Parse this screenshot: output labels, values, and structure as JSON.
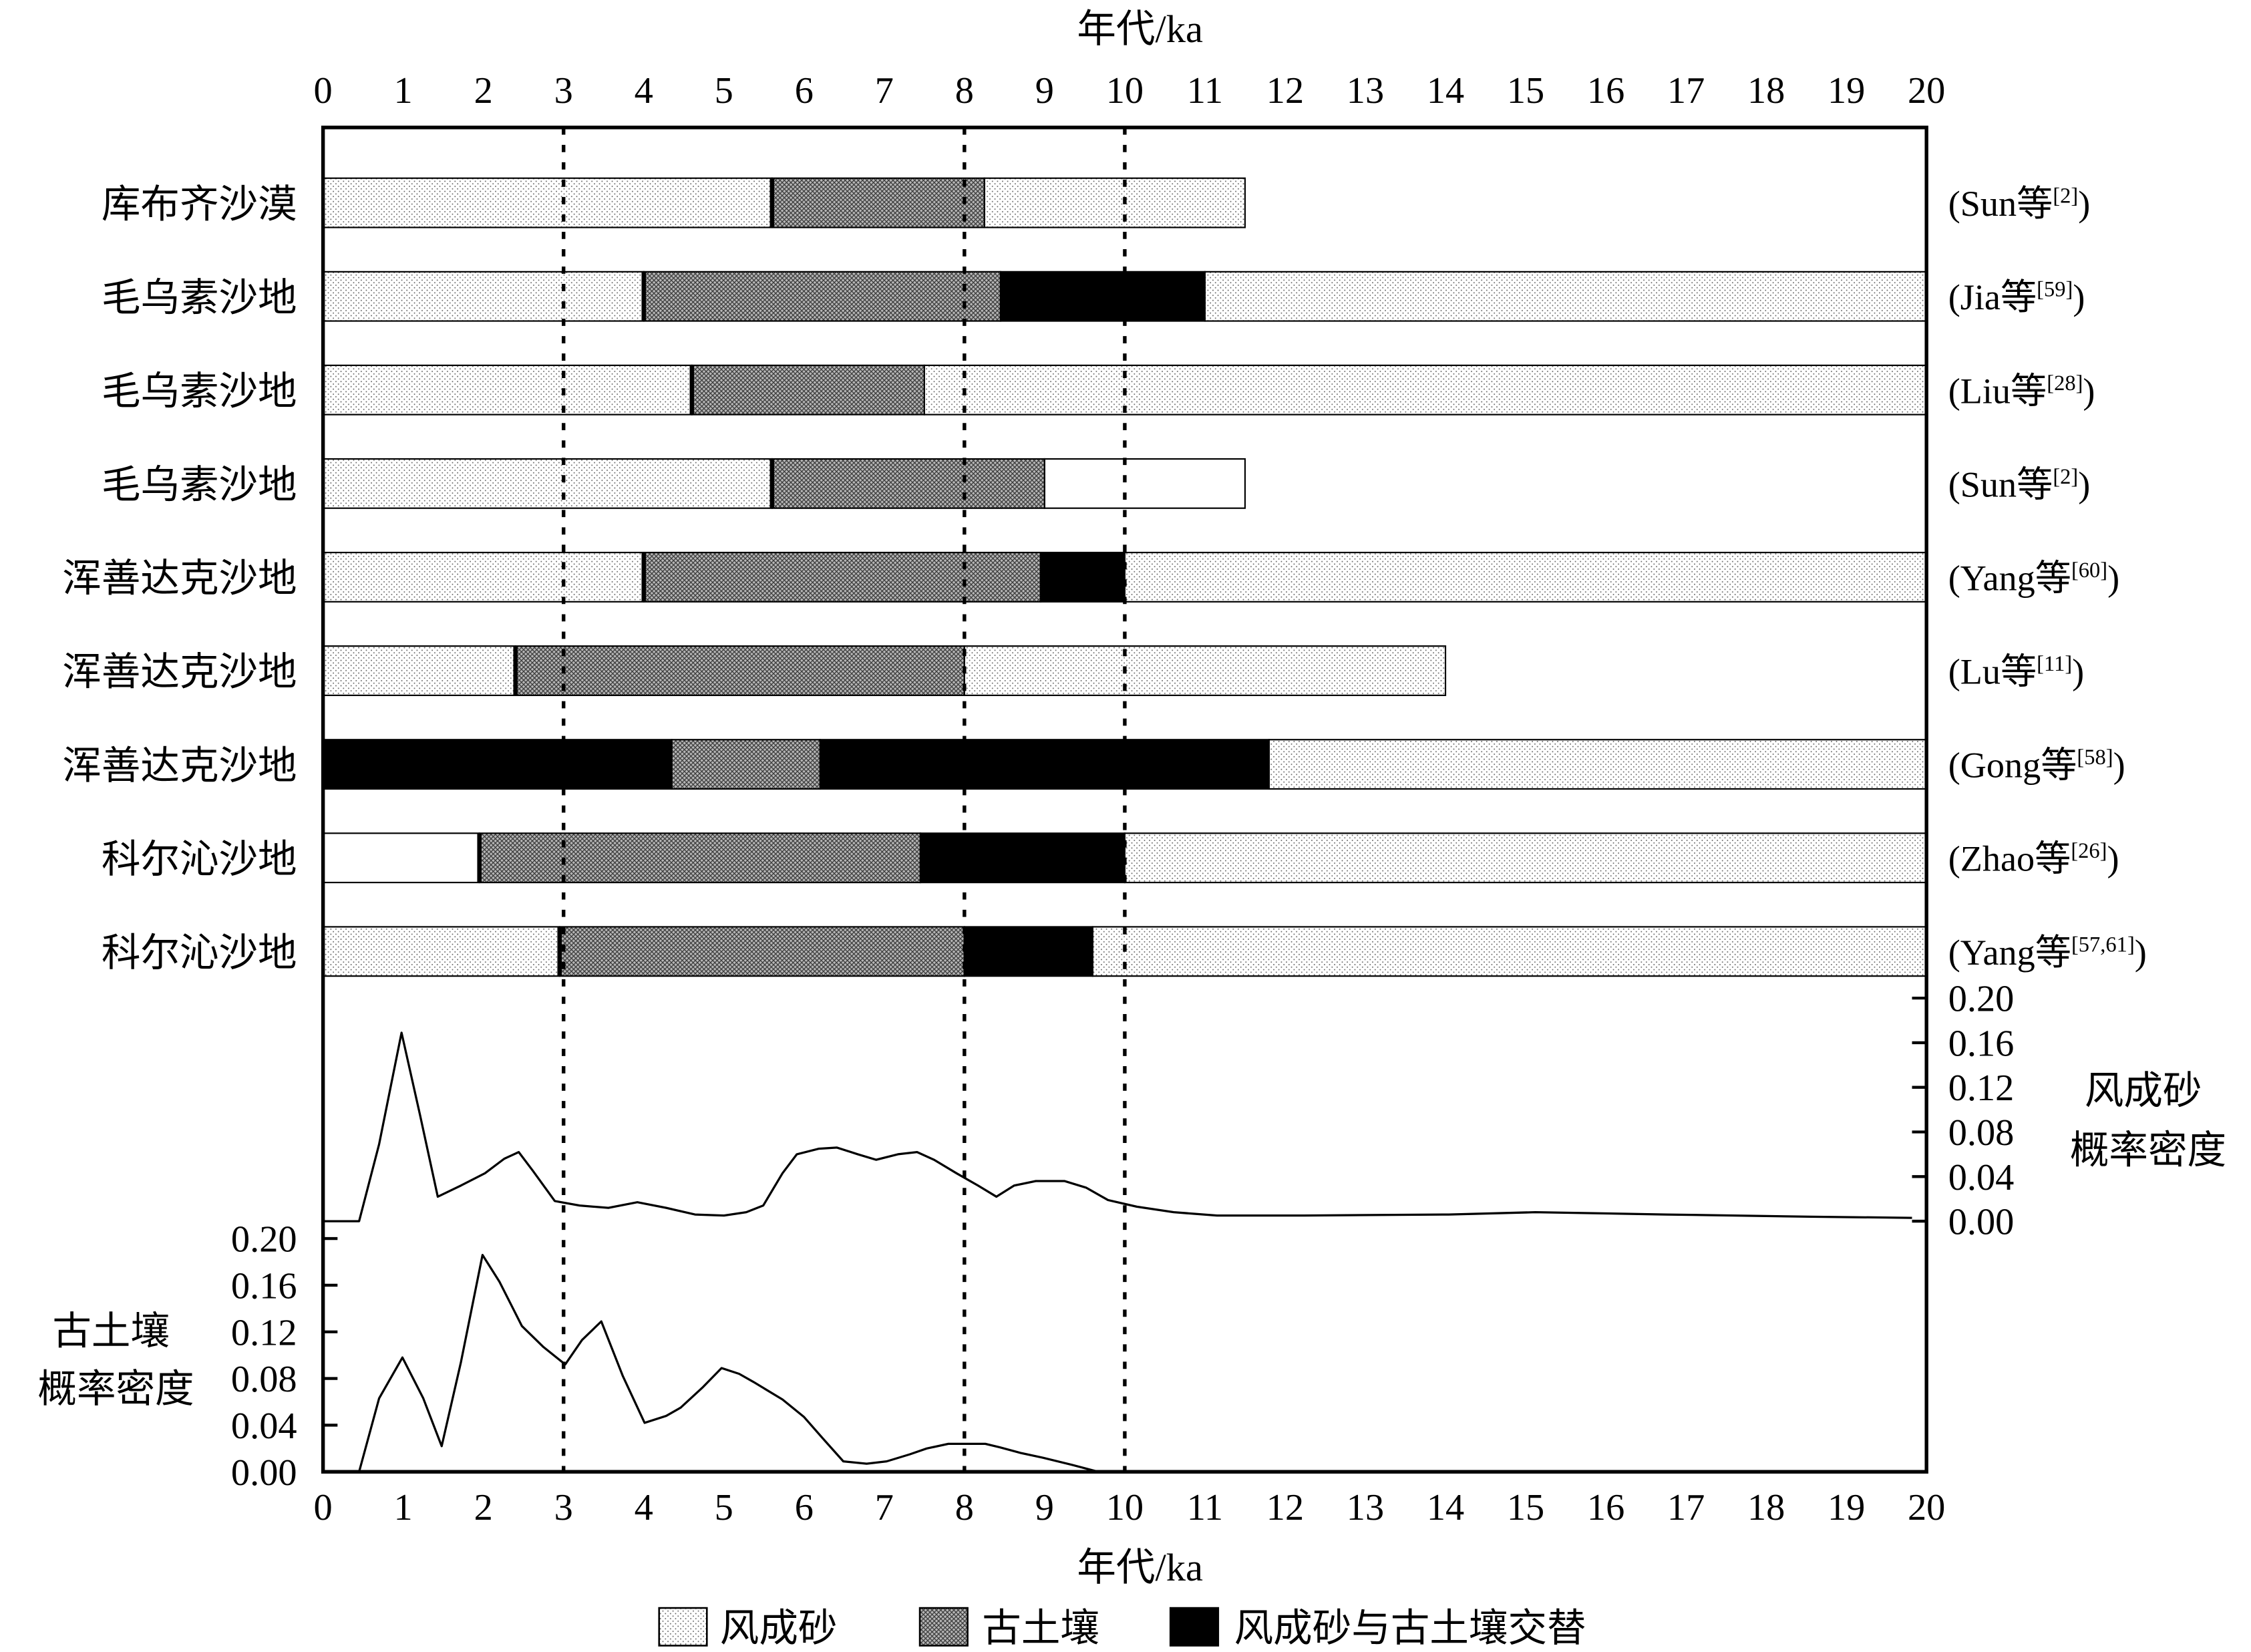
{
  "chart_data": {
    "type": "bar",
    "top_xlabel": "年代/ka",
    "xlabel": "年代/ka",
    "xlim": [
      0,
      20
    ],
    "xticks": [
      0,
      1,
      2,
      3,
      4,
      5,
      6,
      7,
      8,
      9,
      10,
      11,
      12,
      13,
      14,
      15,
      16,
      17,
      18,
      19,
      20
    ],
    "reference_lines": [
      3,
      8,
      10
    ],
    "legend_placement": "bottom",
    "legend": [
      {
        "label": "风成砂"
      },
      {
        "label": "古土壤"
      },
      {
        "label": "风成砂与古土壤交替",
        "color": "#000000"
      }
    ],
    "rows": [
      {
        "site": "库布齐沙漠",
        "citation": {
          "open": "(Sun等",
          "ref": "[2]",
          "close": ")"
        },
        "segments": [
          {
            "start": 0,
            "end": 5.6,
            "type": 0
          },
          {
            "start": 5.6,
            "end": 8.25,
            "type": 1
          },
          {
            "start": 8.25,
            "end": 11.5,
            "type": 0
          }
        ]
      },
      {
        "site": "毛乌素沙地",
        "citation": {
          "open": "(Jia等",
          "ref": "[59]",
          "close": ")"
        },
        "segments": [
          {
            "start": 0,
            "end": 4.0,
            "type": 0
          },
          {
            "start": 4.0,
            "end": 8.45,
            "type": 1
          },
          {
            "start": 8.45,
            "end": 11.0,
            "type": 2
          },
          {
            "start": 11.0,
            "end": 20,
            "type": 0
          }
        ]
      },
      {
        "site": "毛乌素沙地",
        "citation": {
          "open": "(Liu等",
          "ref": "[28]",
          "close": ")"
        },
        "segments": [
          {
            "start": 0,
            "end": 4.6,
            "type": 0
          },
          {
            "start": 4.6,
            "end": 7.5,
            "type": 1
          },
          {
            "start": 7.5,
            "end": 20,
            "type": 0
          }
        ]
      },
      {
        "site": "毛乌素沙地",
        "citation": {
          "open": "(Sun等",
          "ref": "[2]",
          "close": ")"
        },
        "segments": [
          {
            "start": 0,
            "end": 5.6,
            "type": 0
          },
          {
            "start": 5.6,
            "end": 9.0,
            "type": 1
          },
          {
            "start": 9.0,
            "end": 11.5,
            "type": 0,
            "fill": "#ffffff"
          }
        ]
      },
      {
        "site": "浑善达克沙地",
        "citation": {
          "open": "(Yang等",
          "ref": "[60]",
          "close": ")"
        },
        "segments": [
          {
            "start": 0,
            "end": 4.0,
            "type": 0
          },
          {
            "start": 4.0,
            "end": 8.95,
            "type": 1
          },
          {
            "start": 8.95,
            "end": 10.0,
            "type": 2
          },
          {
            "start": 10.0,
            "end": 20,
            "type": 0
          }
        ]
      },
      {
        "site": "浑善达克沙地",
        "citation": {
          "open": "(Lu等",
          "ref": "[11]",
          "close": ")"
        },
        "segments": [
          {
            "start": 0,
            "end": 2.4,
            "type": 0
          },
          {
            "start": 2.4,
            "end": 8.0,
            "type": 1
          },
          {
            "start": 8.0,
            "end": 14.0,
            "type": 0
          }
        ]
      },
      {
        "site": "浑善达克沙地",
        "citation": {
          "open": "(Gong等",
          "ref": "[58]",
          "close": ")"
        },
        "segments": [
          {
            "start": 0,
            "end": 4.35,
            "type": 2
          },
          {
            "start": 4.35,
            "end": 6.2,
            "type": 1
          },
          {
            "start": 6.2,
            "end": 11.8,
            "type": 2
          },
          {
            "start": 11.8,
            "end": 20,
            "type": 0
          }
        ]
      },
      {
        "site": "科尔沁沙地",
        "citation": {
          "open": "(Zhao等",
          "ref": "[26]",
          "close": ")"
        },
        "segments": [
          {
            "start": 0,
            "end": 1.95,
            "type": 0,
            "fill": "#ffffff"
          },
          {
            "start": 1.95,
            "end": 7.45,
            "type": 1
          },
          {
            "start": 7.45,
            "end": 10.0,
            "type": 2
          },
          {
            "start": 10.0,
            "end": 20,
            "type": 0
          }
        ]
      },
      {
        "site": "科尔沁沙地",
        "citation": {
          "open": "(Yang等",
          "ref": "[57,61]",
          "close": ")"
        },
        "segments": [
          {
            "start": 0,
            "end": 2.95,
            "type": 0
          },
          {
            "start": 2.95,
            "end": 8.0,
            "type": 1
          },
          {
            "start": 8.0,
            "end": 9.6,
            "type": 2
          },
          {
            "start": 9.6,
            "end": 20,
            "type": 0
          }
        ]
      }
    ],
    "density_curves": [
      {
        "type": "line",
        "axis": "right",
        "ylabel": [
          "风成砂",
          "概率密度"
        ],
        "ylim": [
          0,
          0.2
        ],
        "yticks": [
          "0.00",
          "0.04",
          "0.08",
          "0.12",
          "0.16",
          "0.20"
        ],
        "x": [
          0,
          0.45,
          0.7,
          0.98,
          1.21,
          1.43,
          1.72,
          2.02,
          2.26,
          2.44,
          2.62,
          2.89,
          3.2,
          3.56,
          3.92,
          4.28,
          4.64,
          5.0,
          5.28,
          5.49,
          5.73,
          5.91,
          6.18,
          6.41,
          6.67,
          6.9,
          7.17,
          7.41,
          7.62,
          7.9,
          8.17,
          8.4,
          8.62,
          8.89,
          9.25,
          9.52,
          9.79,
          10.15,
          10.61,
          11.15,
          12.23,
          14.04,
          15.12,
          16.75,
          18.55,
          19.82
        ],
        "y": [
          0.0,
          0.0,
          0.069,
          0.169,
          0.095,
          0.022,
          0.032,
          0.043,
          0.056,
          0.062,
          0.045,
          0.018,
          0.014,
          0.012,
          0.017,
          0.012,
          0.006,
          0.005,
          0.008,
          0.014,
          0.043,
          0.06,
          0.065,
          0.066,
          0.06,
          0.055,
          0.06,
          0.062,
          0.055,
          0.043,
          0.032,
          0.022,
          0.032,
          0.036,
          0.036,
          0.03,
          0.019,
          0.013,
          0.008,
          0.005,
          0.005,
          0.006,
          0.008,
          0.006,
          0.004,
          0.003
        ]
      },
      {
        "type": "line",
        "axis": "left",
        "ylabel": [
          "古土壤",
          "概率密度"
        ],
        "ylim": [
          0,
          0.2
        ],
        "yticks": [
          "0.00",
          "0.04",
          "0.08",
          "0.12",
          "0.16",
          "0.20"
        ],
        "x": [
          0.45,
          0.7,
          0.99,
          1.25,
          1.48,
          1.72,
          1.99,
          2.2,
          2.48,
          2.75,
          3.02,
          3.23,
          3.47,
          3.74,
          4.01,
          4.28,
          4.46,
          4.73,
          4.97,
          5.19,
          5.37,
          5.73,
          6.0,
          6.23,
          6.49,
          6.78,
          7.03,
          7.32,
          7.53,
          7.8,
          7.99,
          8.26,
          8.44,
          8.71,
          8.98,
          9.34,
          9.67
        ],
        "y": [
          0.0,
          0.063,
          0.098,
          0.063,
          0.022,
          0.094,
          0.186,
          0.163,
          0.125,
          0.107,
          0.092,
          0.113,
          0.129,
          0.082,
          0.042,
          0.048,
          0.055,
          0.072,
          0.089,
          0.084,
          0.077,
          0.062,
          0.047,
          0.029,
          0.009,
          0.007,
          0.009,
          0.015,
          0.02,
          0.024,
          0.024,
          0.024,
          0.021,
          0.016,
          0.012,
          0.006,
          0.0
        ]
      }
    ]
  }
}
